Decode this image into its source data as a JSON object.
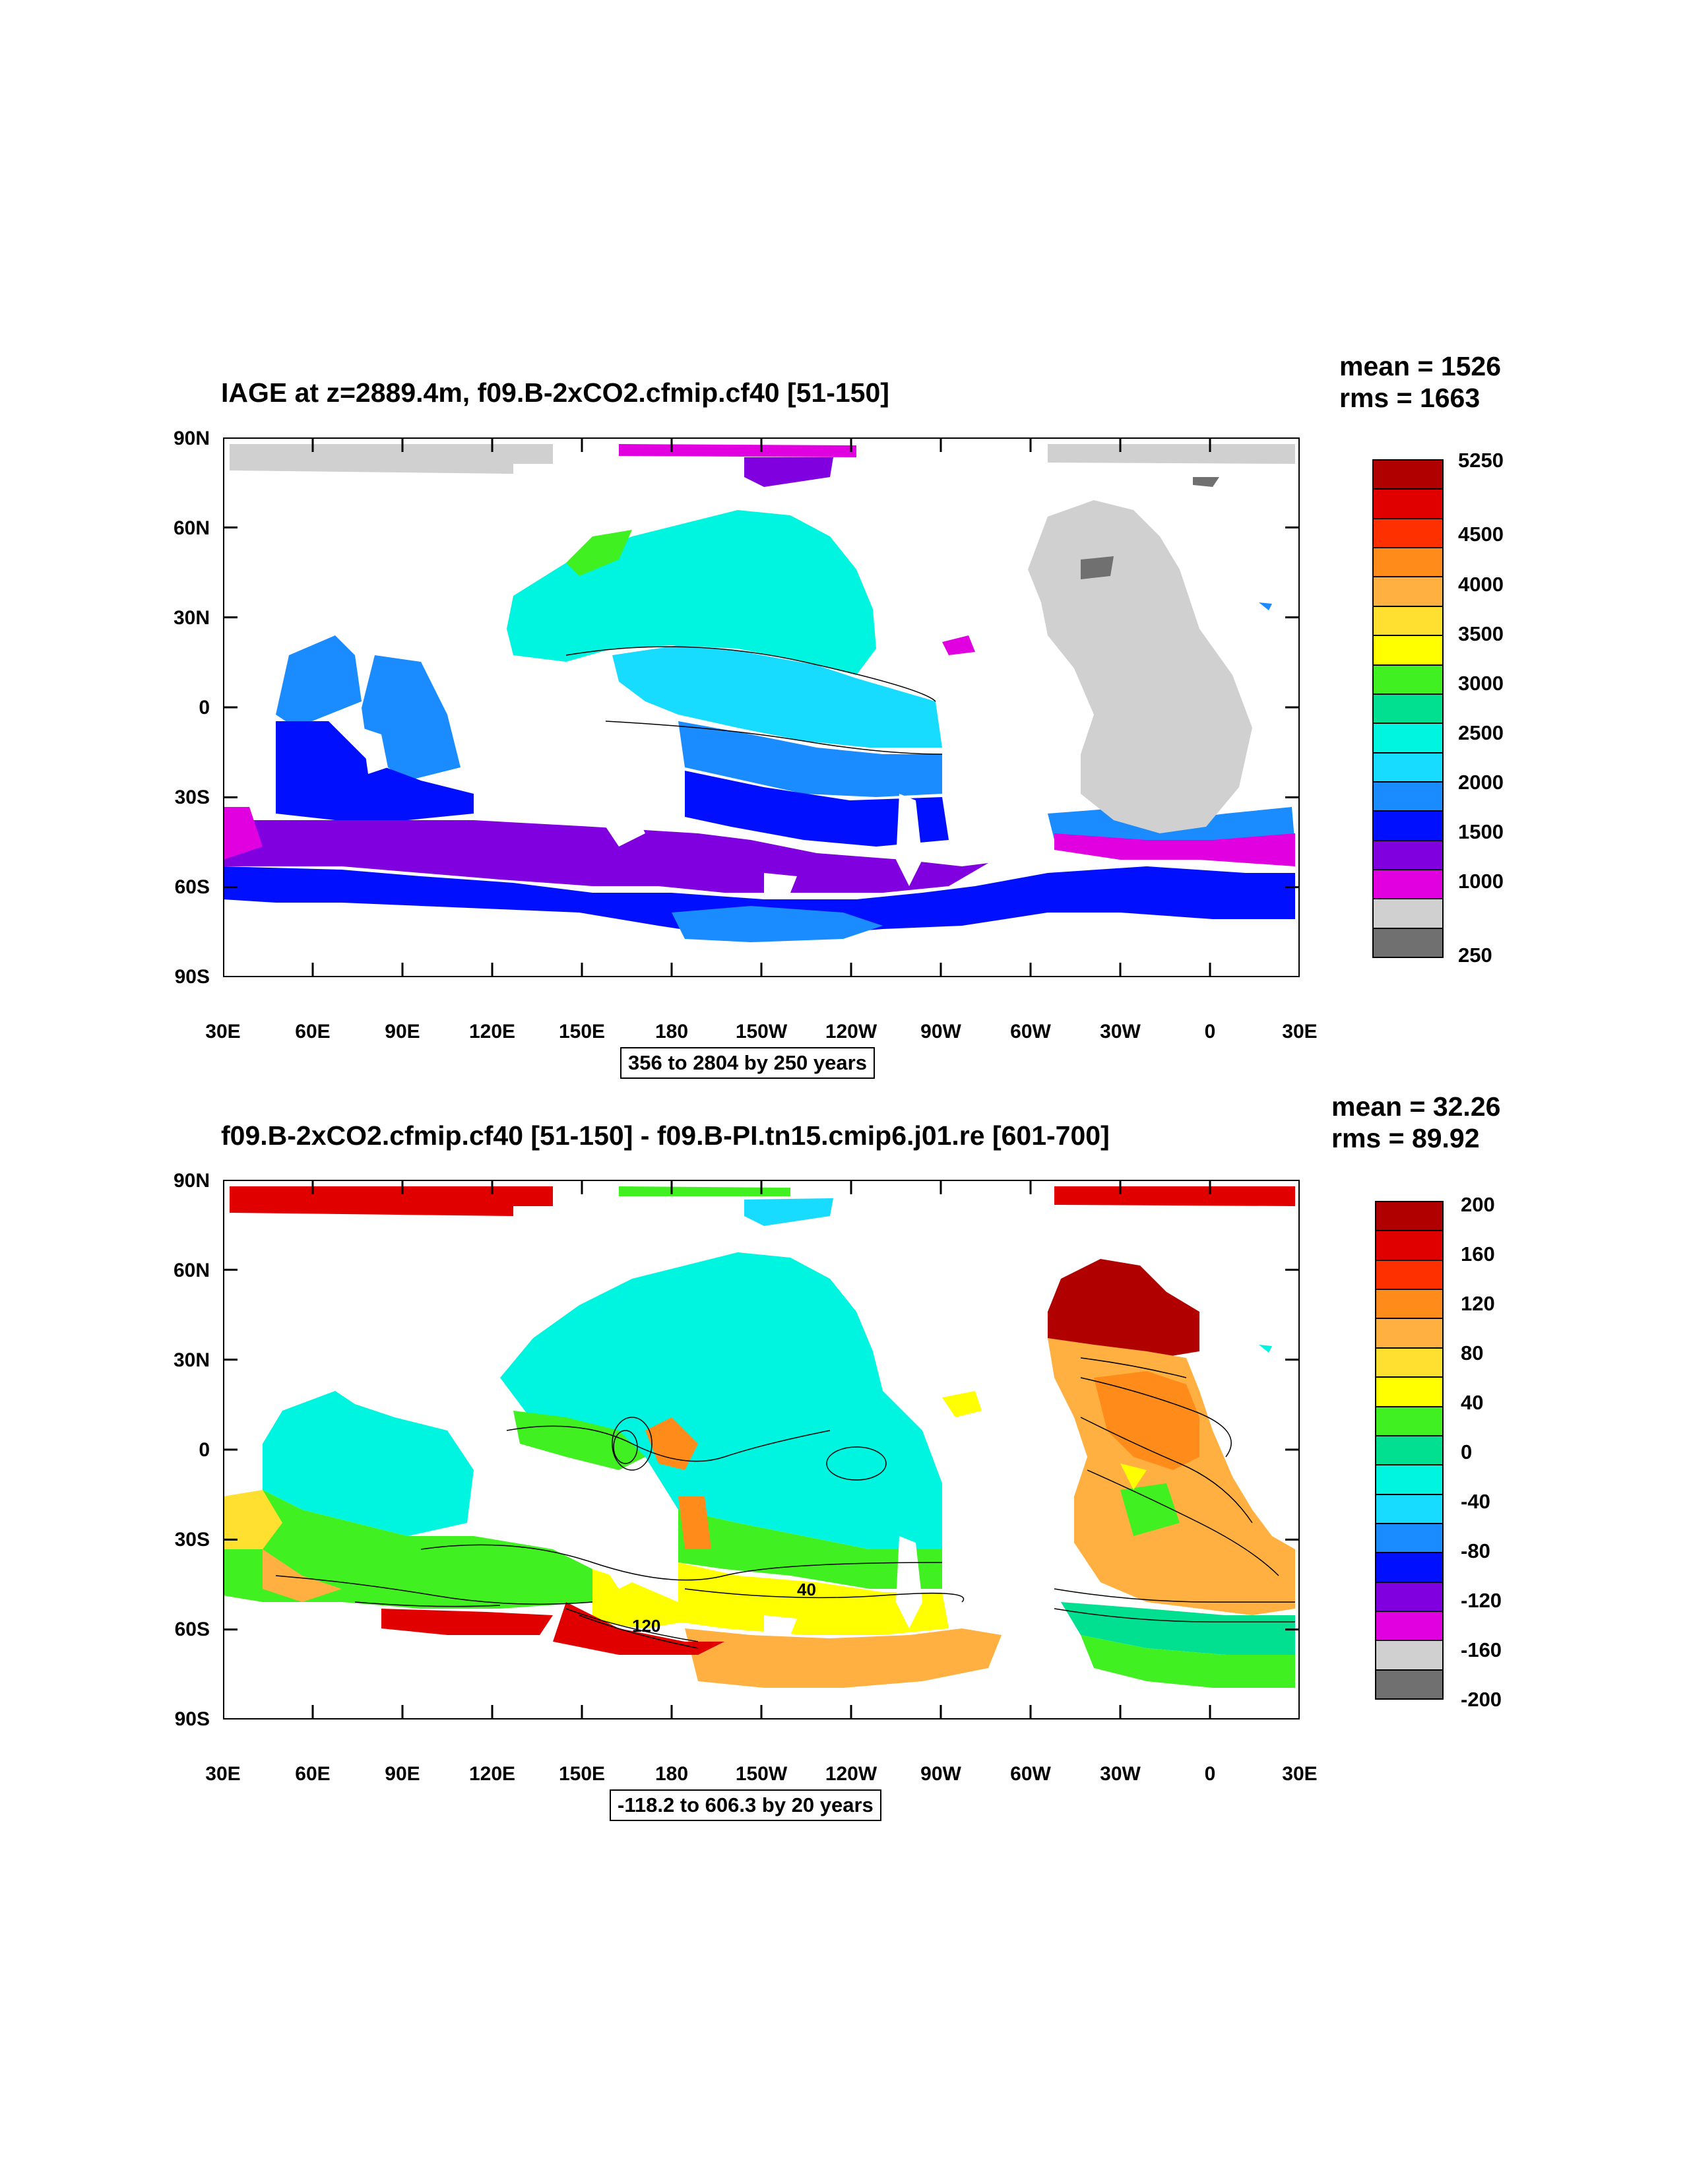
{
  "panels": [
    {
      "title": "IAGE at z=2889.4m, f09.B-2xCO2.cfmip.cf40 [51-150]",
      "mean": "mean = 1526",
      "rms": "rms = 1663",
      "contour_info": "356 to 2804 by 250 years",
      "colorbar_labels": [
        "5250",
        "4500",
        "4000",
        "3500",
        "3000",
        "2500",
        "2000",
        "1500",
        "1000",
        "250"
      ],
      "colorbar_colors": [
        "#b00000",
        "#e00000",
        "#ff3000",
        "#ff8c1a",
        "#ffb040",
        "#ffe030",
        "#ffff00",
        "#40f020",
        "#00e090",
        "#00f5e0",
        "#18dcff",
        "#1a8cff",
        "#0010ff",
        "#8000e0",
        "#e000e0",
        "#d0d0d0",
        "#707070"
      ]
    },
    {
      "title": "f09.B-2xCO2.cfmip.cf40 [51-150] - f09.B-PI.tn15.cmip6.j01.re [601-700]",
      "mean": "mean = 32.26",
      "rms": "rms = 89.92",
      "contour_info": "-118.2 to 606.3 by 20 years",
      "colorbar_labels": [
        "200",
        "160",
        "120",
        "80",
        "40",
        "0",
        "-40",
        "-80",
        "-120",
        "-160",
        "-200"
      ],
      "colorbar_colors": [
        "#b00000",
        "#e00000",
        "#ff3000",
        "#ff8c1a",
        "#ffb040",
        "#ffe030",
        "#ffff00",
        "#40f020",
        "#00e090",
        "#00f5e0",
        "#18dcff",
        "#1a8cff",
        "#0010ff",
        "#8000e0",
        "#e000e0",
        "#d0d0d0",
        "#707070"
      ]
    }
  ],
  "lat_labels": [
    "90N",
    "60N",
    "30N",
    "0",
    "30S",
    "60S",
    "90S"
  ],
  "lon_labels": [
    "30E",
    "60E",
    "90E",
    "120E",
    "150E",
    "180",
    "150W",
    "120W",
    "90W",
    "60W",
    "30W",
    "0",
    "30E"
  ],
  "map_annotations": [
    "40",
    "120"
  ]
}
